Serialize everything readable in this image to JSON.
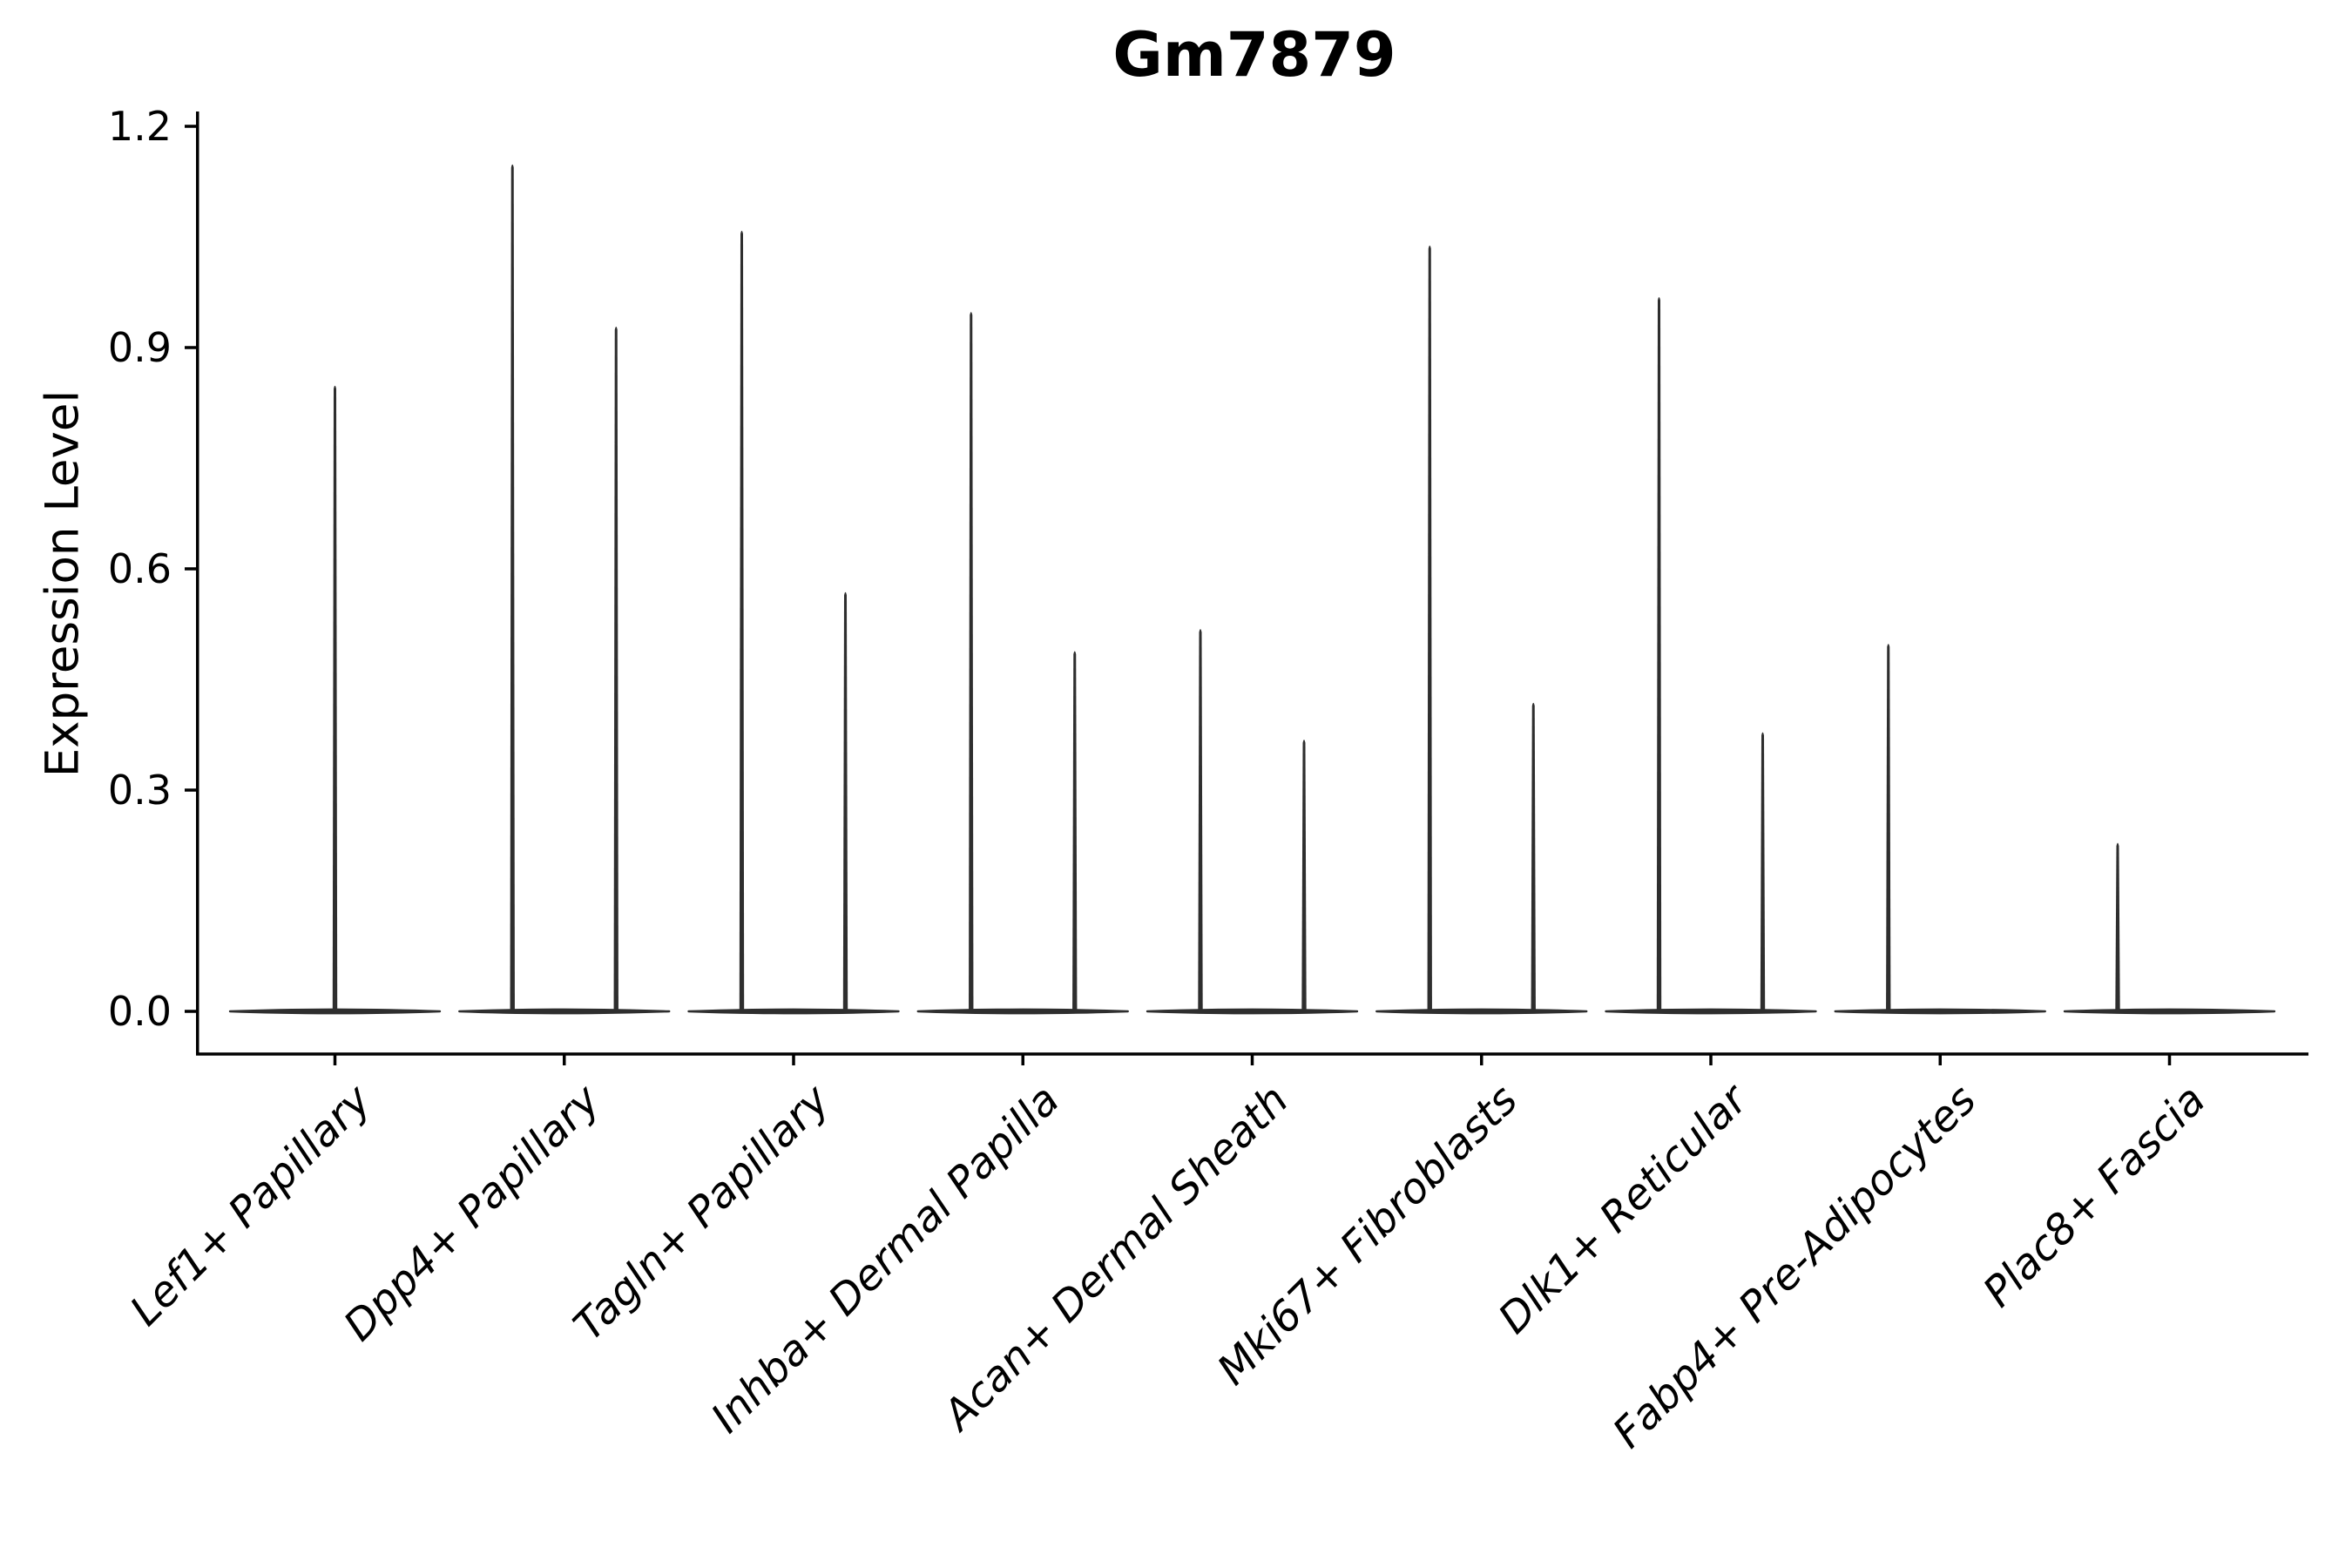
{
  "title": "Gm7879",
  "axes": {
    "ylabel": "Expression Level",
    "ytick_labels": [
      "0.0",
      "0.3",
      "0.6",
      "0.9",
      "1.2"
    ]
  },
  "chart_data": {
    "type": "violin",
    "title": "Gm7879",
    "xlabel": "",
    "ylabel": "Expression Level",
    "ylim": [
      0.0,
      1.22
    ],
    "yticks": [
      0.0,
      0.3,
      0.6,
      0.9,
      1.2
    ],
    "ytick_labels": [
      "0.0",
      "0.3",
      "0.6",
      "0.9",
      "1.2"
    ],
    "grid": false,
    "legend": "none",
    "baseline_value": 0.0,
    "categories": [
      "Lef1+ Papillary",
      "Dpp4+ Papillary",
      "Tagln+ Papillary",
      "Inhba+ Dermal Papilla",
      "Acan+ Dermal Sheath",
      "Mki67+ Fibroblasts",
      "Dlk1+ Reticular",
      "Fabp4+ Pre-Adipocytes",
      "Plac8+ Fascia"
    ],
    "violins": [
      {
        "category": "Lef1+ Papillary",
        "spikes": [
          {
            "slot": "center",
            "max": 0.85
          }
        ]
      },
      {
        "category": "Dpp4+ Papillary",
        "spikes": [
          {
            "slot": "left",
            "max": 1.15
          },
          {
            "slot": "right",
            "max": 0.93
          }
        ]
      },
      {
        "category": "Tagln+ Papillary",
        "spikes": [
          {
            "slot": "left",
            "max": 1.06
          },
          {
            "slot": "right",
            "max": 0.57
          }
        ]
      },
      {
        "category": "Inhba+ Dermal Papilla",
        "spikes": [
          {
            "slot": "left",
            "max": 0.95
          },
          {
            "slot": "right",
            "max": 0.49
          }
        ]
      },
      {
        "category": "Acan+ Dermal Sheath",
        "spikes": [
          {
            "slot": "left",
            "max": 0.52
          },
          {
            "slot": "right",
            "max": 0.37
          }
        ]
      },
      {
        "category": "Mki67+ Fibroblasts",
        "spikes": [
          {
            "slot": "left",
            "max": 1.04
          },
          {
            "slot": "right",
            "max": 0.42
          }
        ]
      },
      {
        "category": "Dlk1+ Reticular",
        "spikes": [
          {
            "slot": "left",
            "max": 0.97
          },
          {
            "slot": "right",
            "max": 0.38
          }
        ]
      },
      {
        "category": "Fabp4+ Pre-Adipocytes",
        "spikes": [
          {
            "slot": "left",
            "max": 0.5
          }
        ]
      },
      {
        "category": "Plac8+ Fascia",
        "spikes": [
          {
            "slot": "left",
            "max": 0.23
          }
        ]
      }
    ],
    "colors": {
      "violin": "#2e2e2e",
      "axis": "#000000",
      "text": "#000000"
    }
  }
}
